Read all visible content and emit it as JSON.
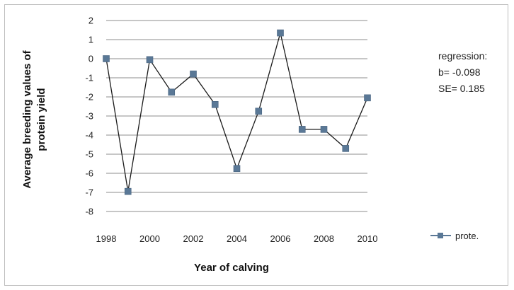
{
  "chart_data": {
    "type": "line",
    "xlabel": "Year of calving",
    "ylabel_lines": [
      "Average breeding values of",
      "protein yield"
    ],
    "ylim": [
      -8,
      2
    ],
    "yticks": [
      "2",
      "1",
      "0",
      "-1",
      "-2",
      "-3",
      "-4",
      "-5",
      "-6",
      "-7",
      "-8"
    ],
    "xticks": [
      "1998",
      "2000",
      "2002",
      "2004",
      "2006",
      "2008",
      "2010"
    ],
    "xlim": [
      1998,
      2010
    ],
    "grid": true,
    "legend_position": "right",
    "series": [
      {
        "name": "prote.",
        "color": "#4f6f8f",
        "x": [
          1998,
          1999,
          2000,
          2001,
          2002,
          2003,
          2004,
          2005,
          2006,
          2007,
          2008,
          2009,
          2010
        ],
        "y": [
          0.0,
          -6.95,
          -0.05,
          -1.75,
          -0.8,
          -2.4,
          -5.75,
          -2.75,
          1.35,
          -3.7,
          -3.7,
          -4.7,
          -2.05
        ]
      }
    ],
    "annotations": {
      "regression_label": "regression:",
      "b_text": "b= -0.098",
      "se_text": "SE= 0.185"
    }
  }
}
